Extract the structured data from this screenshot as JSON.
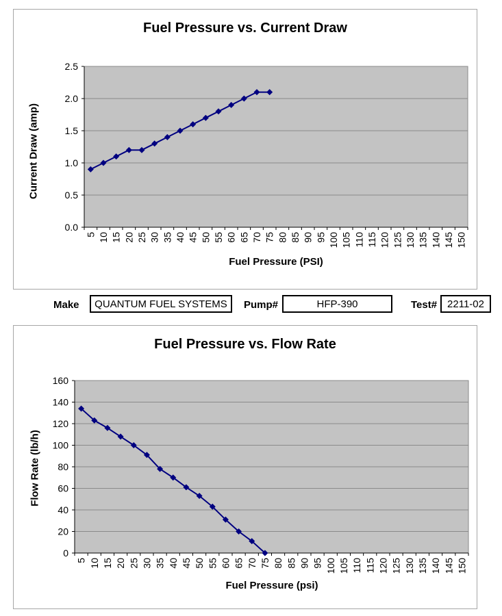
{
  "fields": {
    "make_label": "Make",
    "make_value": "QUANTUM FUEL SYSTEMS",
    "pump_label": "Pump#",
    "pump_value": "HFP-390",
    "test_label": "Test#",
    "test_value": "2211-02"
  },
  "chart_data": [
    {
      "type": "line",
      "title": "Fuel Pressure vs. Current Draw",
      "xlabel": "Fuel Pressure (PSI)",
      "ylabel": "Current Draw (amp)",
      "x_ticks": [
        5,
        10,
        15,
        20,
        25,
        30,
        35,
        40,
        45,
        50,
        55,
        60,
        65,
        70,
        75,
        80,
        85,
        90,
        95,
        100,
        105,
        110,
        115,
        120,
        125,
        130,
        135,
        140,
        145,
        150
      ],
      "x": [
        5,
        10,
        15,
        20,
        25,
        30,
        35,
        40,
        45,
        50,
        55,
        60,
        65,
        70,
        75
      ],
      "series": [
        {
          "name": "Current Draw (amp)",
          "values": [
            0.9,
            1.0,
            1.1,
            1.2,
            1.2,
            1.3,
            1.4,
            1.5,
            1.6,
            1.7,
            1.8,
            1.9,
            2.0,
            2.1,
            2.1
          ]
        }
      ],
      "ylim": [
        0,
        2.5
      ],
      "y_tick_step": 0.5,
      "y_tick_decimals": 1,
      "grid": true,
      "legend": "none",
      "marker": "diamond",
      "colors": {
        "line": "#000080",
        "plot_bg": "#c3c3c3",
        "grid": "#8a8a8a",
        "axis": "#000000"
      }
    },
    {
      "type": "line",
      "title": "Fuel Pressure vs. Flow Rate",
      "xlabel": "Fuel Pressure (psi)",
      "ylabel": "Flow Rate (lb/h)",
      "x_ticks": [
        5,
        10,
        15,
        20,
        25,
        30,
        35,
        40,
        45,
        50,
        55,
        60,
        65,
        70,
        75,
        80,
        85,
        90,
        95,
        100,
        105,
        110,
        115,
        120,
        125,
        130,
        135,
        140,
        145,
        150
      ],
      "x": [
        5,
        10,
        15,
        20,
        25,
        30,
        35,
        40,
        45,
        50,
        55,
        60,
        65,
        70,
        75
      ],
      "series": [
        {
          "name": "Flow Rate (lb/h)",
          "values": [
            134,
            123,
            116,
            108,
            100,
            91,
            78,
            70,
            61,
            53,
            43,
            31,
            20,
            11,
            0
          ]
        }
      ],
      "ylim": [
        0,
        160
      ],
      "y_tick_step": 20,
      "y_tick_decimals": 0,
      "grid": true,
      "legend": "none",
      "marker": "diamond",
      "colors": {
        "line": "#000080",
        "plot_bg": "#c3c3c3",
        "grid": "#8a8a8a",
        "axis": "#000000"
      }
    }
  ]
}
